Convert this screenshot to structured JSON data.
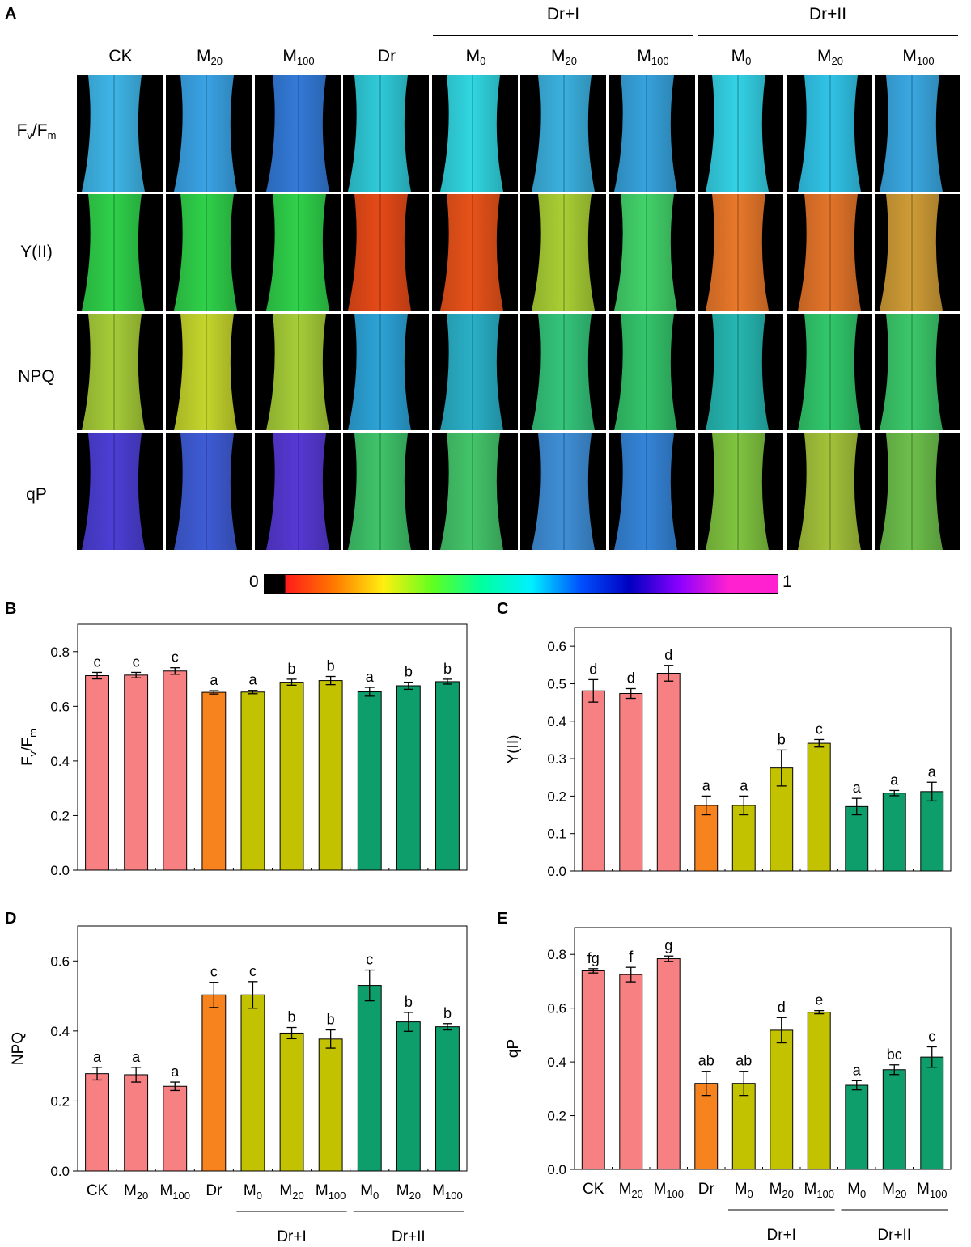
{
  "panel_a": {
    "label": "A",
    "columns": [
      {
        "base": "CK",
        "sub": ""
      },
      {
        "base": "M",
        "sub": "20"
      },
      {
        "base": "M",
        "sub": "100"
      },
      {
        "base": "Dr",
        "sub": ""
      },
      {
        "base": "M",
        "sub": "0"
      },
      {
        "base": "M",
        "sub": "20"
      },
      {
        "base": "M",
        "sub": "100"
      },
      {
        "base": "M",
        "sub": "0"
      },
      {
        "base": "M",
        "sub": "20"
      },
      {
        "base": "M",
        "sub": "100"
      }
    ],
    "groups": [
      {
        "label": "Dr+I"
      },
      {
        "label": "Dr+II"
      }
    ],
    "rows": [
      {
        "label": "Y(II)",
        "colors": [
          "#2fd14a",
          "#2fd14a",
          "#2fd14a",
          "#e64a18",
          "#e8521a",
          "#a9cf34",
          "#42d26a",
          "#e9782a",
          "#e3742a",
          "#cf9c36"
        ]
      },
      {
        "label": "NPQ",
        "colors": [
          "#a6cc38",
          "#c5d52c",
          "#a6cd38",
          "#2ca3d7",
          "#2ab0c7",
          "#34c57a",
          "#33c46a",
          "#26b7b2",
          "#31c86b",
          "#3bc86a"
        ]
      },
      {
        "label": "qP",
        "colors": [
          "#4c3fd6",
          "#3f5cd6",
          "#5639d4",
          "#3fc46a",
          "#44c56a",
          "#3f8fd8",
          "#3584d8",
          "#80c440",
          "#a4c23a",
          "#6dbf4b"
        ]
      }
    ],
    "fvfm_row": {
      "label_main": "F",
      "label_sub1": "v",
      "label_slash": "/F",
      "label_sub2": "m",
      "colors": [
        "#3fb6e8",
        "#3aa3e5",
        "#337ad8",
        "#2fcad8",
        "#31d6e1",
        "#3bb1df",
        "#36a2dc",
        "#34d2e6",
        "#31c4e8",
        "#3aa8e2"
      ]
    },
    "colorbar": {
      "min_label": "0",
      "max_label": "1",
      "stops": [
        "#000000",
        "#ff1a1a",
        "#ff7a00",
        "#ffef10",
        "#5fff20",
        "#00ffa0",
        "#00f0ff",
        "#0050ff",
        "#0000c0",
        "#8a00ff",
        "#ff20d0"
      ]
    }
  },
  "chart_data": [
    {
      "type": "bar",
      "panel": "B",
      "ylabel_main": "F",
      "ylabel_sub1": "v",
      "ylabel_slash": "/F",
      "ylabel_sub2": "m",
      "ylim": [
        0,
        0.9
      ],
      "yticks": [
        "0.0",
        "0.2",
        "0.4",
        "0.6",
        "0.8"
      ],
      "ytick_values": [
        0,
        0.2,
        0.4,
        0.6,
        0.8
      ],
      "values": [
        0.712,
        0.714,
        0.729,
        0.651,
        0.652,
        0.688,
        0.694,
        0.653,
        0.675,
        0.69
      ],
      "errors": [
        0.012,
        0.01,
        0.012,
        0.006,
        0.006,
        0.011,
        0.015,
        0.016,
        0.013,
        0.009
      ],
      "letters": [
        "c",
        "c",
        "c",
        "a",
        "a",
        "b",
        "b",
        "a",
        "b",
        "b"
      ],
      "show_xlabels": false
    },
    {
      "type": "bar",
      "panel": "C",
      "ylabel": "Y(II)",
      "ylim": [
        0,
        0.65
      ],
      "yticks": [
        "0.0",
        "0.1",
        "0.2",
        "0.3",
        "0.4",
        "0.5",
        "0.6"
      ],
      "ytick_values": [
        0,
        0.1,
        0.2,
        0.3,
        0.4,
        0.5,
        0.6
      ],
      "values": [
        0.481,
        0.474,
        0.528,
        0.175,
        0.175,
        0.275,
        0.341,
        0.172,
        0.208,
        0.212
      ],
      "errors": [
        0.03,
        0.013,
        0.021,
        0.025,
        0.025,
        0.048,
        0.01,
        0.022,
        0.007,
        0.025
      ],
      "letters": [
        "d",
        "d",
        "d",
        "a",
        "a",
        "b",
        "c",
        "a",
        "a",
        "a"
      ],
      "show_xlabels": false
    },
    {
      "type": "bar",
      "panel": "D",
      "ylabel": "NPQ",
      "ylim": [
        0,
        0.7
      ],
      "yticks": [
        "0.0",
        "0.2",
        "0.4",
        "0.6"
      ],
      "ytick_values": [
        0,
        0.2,
        0.4,
        0.6
      ],
      "values": [
        0.278,
        0.275,
        0.242,
        0.503,
        0.503,
        0.394,
        0.377,
        0.53,
        0.426,
        0.412
      ],
      "errors": [
        0.018,
        0.021,
        0.012,
        0.036,
        0.038,
        0.016,
        0.026,
        0.044,
        0.027,
        0.009
      ],
      "letters": [
        "a",
        "a",
        "a",
        "c",
        "c",
        "b",
        "b",
        "c",
        "b",
        "b"
      ],
      "show_xlabels": true
    },
    {
      "type": "bar",
      "panel": "E",
      "ylabel": "qP",
      "ylim": [
        0,
        0.9
      ],
      "yticks": [
        "0.0",
        "0.2",
        "0.4",
        "0.6",
        "0.8"
      ],
      "ytick_values": [
        0,
        0.2,
        0.4,
        0.6,
        0.8
      ],
      "values": [
        0.739,
        0.725,
        0.784,
        0.32,
        0.32,
        0.518,
        0.585,
        0.313,
        0.371,
        0.418
      ],
      "errors": [
        0.008,
        0.027,
        0.01,
        0.045,
        0.045,
        0.047,
        0.006,
        0.017,
        0.018,
        0.038
      ],
      "letters": [
        "fg",
        "f",
        "g",
        "ab",
        "ab",
        "d",
        "e",
        "a",
        "bc",
        "c"
      ],
      "show_xlabels": true
    }
  ],
  "bar_colors": {
    "control": "#f78182",
    "drought": "#f7831f",
    "dr1": "#c3c200",
    "dr2": "#0e9e6b"
  },
  "bar_color_groups": [
    "control",
    "control",
    "control",
    "drought",
    "dr1",
    "dr1",
    "dr1",
    "dr2",
    "dr2",
    "dr2"
  ],
  "x_categories": [
    {
      "base": "CK",
      "sub": ""
    },
    {
      "base": "M",
      "sub": "20"
    },
    {
      "base": "M",
      "sub": "100"
    },
    {
      "base": "Dr",
      "sub": ""
    },
    {
      "base": "M",
      "sub": "0"
    },
    {
      "base": "M",
      "sub": "20"
    },
    {
      "base": "M",
      "sub": "100"
    },
    {
      "base": "M",
      "sub": "0"
    },
    {
      "base": "M",
      "sub": "20"
    },
    {
      "base": "M",
      "sub": "100"
    }
  ],
  "x_groups": [
    "Dr+I",
    "Dr+II"
  ]
}
